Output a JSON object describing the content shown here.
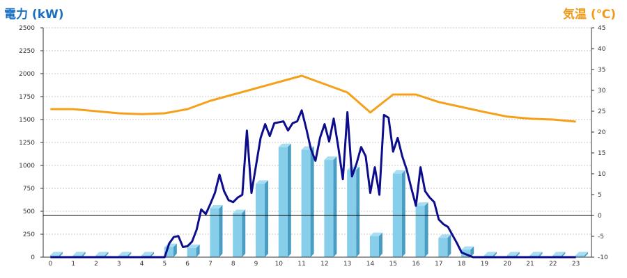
{
  "chart_data": {
    "type": "bar",
    "y_left_label": "電力 (kW)",
    "y_right_label": "気温 (℃)",
    "categories": [
      "0",
      "1",
      "2",
      "3",
      "4",
      "5",
      "6",
      "7",
      "8",
      "9",
      "10",
      "11",
      "12",
      "13",
      "14",
      "15",
      "16",
      "17",
      "18",
      "19",
      "20",
      "21",
      "22",
      "23"
    ],
    "y_left_ticks": [
      "0",
      "250",
      "500",
      "750",
      "1000",
      "1250",
      "1500",
      "1750",
      "2000",
      "2250",
      "2500"
    ],
    "y_right_ticks": [
      "-10",
      "-5",
      "0",
      "5",
      "10",
      "15",
      "20",
      "25",
      "30",
      "35",
      "40",
      "45"
    ],
    "ylim_left": [
      0,
      2500
    ],
    "ylim_right": [
      -10,
      45
    ],
    "grid": true,
    "reference_line": {
      "axis": "right",
      "value": 0
    },
    "series": [
      {
        "type": "bar",
        "axis": "left",
        "values": [
          20,
          20,
          20,
          20,
          20,
          110,
          100,
          530,
          480,
          800,
          1200,
          1170,
          1060,
          950,
          230,
          910,
          560,
          210,
          80,
          20,
          20,
          20,
          20,
          20
        ]
      },
      {
        "type": "line",
        "axis": "left",
        "x": [
          0,
          0.5,
          1,
          1.5,
          2,
          2.5,
          3,
          3.5,
          4,
          4.5,
          5,
          5.2,
          5.4,
          5.6,
          5.8,
          6,
          6.2,
          6.4,
          6.6,
          6.8,
          7,
          7.2,
          7.4,
          7.6,
          7.8,
          8,
          8.2,
          8.4,
          8.6,
          8.8,
          9,
          9.2,
          9.4,
          9.6,
          9.8,
          10,
          10.2,
          10.4,
          10.6,
          10.8,
          11,
          11.2,
          11.4,
          11.6,
          11.8,
          12,
          12.2,
          12.4,
          12.6,
          12.8,
          13,
          13.2,
          13.4,
          13.6,
          13.8,
          14,
          14.2,
          14.4,
          14.6,
          14.8,
          15,
          15.2,
          15.4,
          15.6,
          15.8,
          16,
          16.2,
          16.4,
          16.6,
          16.8,
          17,
          17.2,
          17.4,
          17.6,
          17.8,
          18,
          18.5,
          19,
          19.5,
          20,
          20.5,
          21,
          21.5,
          22,
          22.5,
          23
        ],
        "values": [
          0,
          0,
          0,
          0,
          0,
          0,
          0,
          0,
          0,
          0,
          0,
          150,
          220,
          230,
          110,
          120,
          170,
          300,
          520,
          470,
          580,
          700,
          900,
          720,
          620,
          600,
          650,
          680,
          1380,
          700,
          1000,
          1300,
          1450,
          1320,
          1460,
          1470,
          1480,
          1380,
          1460,
          1480,
          1600,
          1400,
          1180,
          1050,
          1300,
          1450,
          1260,
          1510,
          1200,
          850,
          1580,
          880,
          1020,
          1200,
          1100,
          700,
          980,
          680,
          1550,
          1520,
          1150,
          1300,
          1100,
          950,
          750,
          560,
          980,
          720,
          650,
          600,
          410,
          360,
          330,
          240,
          150,
          50,
          0,
          0,
          0,
          0,
          0,
          0,
          0,
          0,
          0,
          0
        ],
        "color": "#0d0d8c"
      },
      {
        "type": "line",
        "axis": "right",
        "x": [
          0,
          1,
          2,
          3,
          4,
          5,
          6,
          7,
          8,
          9,
          10,
          11,
          12,
          13,
          14,
          15,
          16,
          17,
          18,
          19,
          20,
          21,
          22,
          23
        ],
        "values": [
          25.5,
          25.5,
          25.0,
          24.5,
          24.3,
          24.5,
          25.5,
          27.5,
          29.0,
          30.5,
          32.0,
          33.5,
          31.5,
          29.5,
          24.7,
          29.0,
          29.0,
          27.2,
          26.0,
          24.8,
          23.7,
          23.2,
          23.0,
          22.5
        ],
        "color": "#f5a01a"
      }
    ]
  },
  "colors": {
    "bar_face": "#87ceeb",
    "bar_side": "#4a9dc2",
    "power_line": "#0d0d8c",
    "temp_line": "#f5a01a",
    "grid": "#c8c8c8"
  }
}
